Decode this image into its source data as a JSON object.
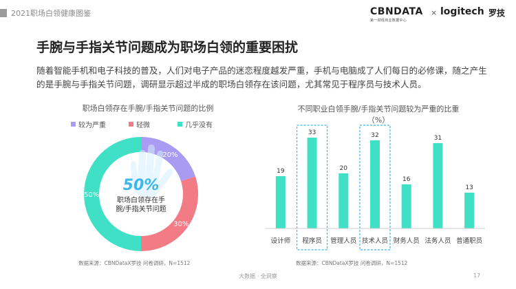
{
  "header": {
    "title": "2021职场白领健康图鉴",
    "logo_cbn": "CBNDATA",
    "logo_cbn_sub": "第一财经商业数据中心",
    "logo_x": "×",
    "logo_logitech": "logitech",
    "logo_luoji": "罗技"
  },
  "main": {
    "title": "手腕与手指关节问题成为职场白领的重要困扰",
    "body": "随着智能手机和电子科技的普及，人们对电子产品的迷恋程度越发严重，手机与电脑成了人们每日的必修课，随之产生的是手腕与手指关节问题，调研显示超过半成的职场白领存在该问题，尤其常见于程序员与技术人员。"
  },
  "chart_data": [
    {
      "type": "pie",
      "title": "职场白领存在手腕/手指关节问题的比例",
      "center_value": "50%",
      "center_label_line1": "职场白领存在手",
      "center_label_line2": "腕/手指关节问题",
      "slices": [
        {
          "name": "较为严重",
          "value": 20,
          "label": "20%",
          "color": "#a99af2"
        },
        {
          "name": "轻微",
          "value": 30,
          "label": "30%",
          "color": "#f27b86"
        },
        {
          "name": "几乎没有",
          "value": 50,
          "label": "50%",
          "color": "#3fe0c5"
        }
      ],
      "legend_position": "top",
      "source": "数据来源：CBNDataX罗技 问卷调研，N=1512"
    },
    {
      "type": "bar",
      "title": "不同职业白领手腕/手指关节问题较为严重的比重",
      "unit": "（%）",
      "categories": [
        "设计师",
        "程序员",
        "管理人员",
        "技术人员",
        "财务人员",
        "法务人员",
        "普通职员"
      ],
      "values": [
        19,
        33,
        20,
        32,
        16,
        31,
        13
      ],
      "highlighted": [
        "程序员",
        "技术人员"
      ],
      "bar_color": "#3fe0c5",
      "highlight_color": "#3cb8e8",
      "ylim": [
        0,
        33
      ],
      "source": "数据来源：CBNDataX罗技 问卷调研，N=1512"
    }
  ],
  "footer": {
    "center": "大数据 · 全洞察",
    "page": "17"
  }
}
